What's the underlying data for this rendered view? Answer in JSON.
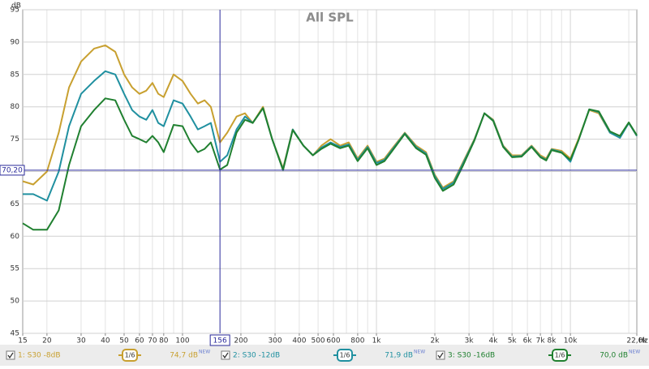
{
  "chart_data": {
    "type": "line",
    "title": "All SPL",
    "y_label": "dB",
    "x_label": "Hz",
    "x": [
      15,
      17,
      20,
      23,
      26,
      30,
      35,
      40,
      45,
      50,
      55,
      60,
      65,
      70,
      75,
      80,
      90,
      100,
      110,
      120,
      130,
      140,
      156,
      170,
      190,
      210,
      230,
      260,
      290,
      330,
      370,
      420,
      470,
      520,
      580,
      650,
      720,
      800,
      900,
      1000,
      1100,
      1200,
      1400,
      1600,
      1800,
      2000,
      2200,
      2500,
      2800,
      3200,
      3600,
      4000,
      4500,
      5000,
      5600,
      6300,
      7000,
      7500,
      8000,
      9000,
      10000,
      11000,
      12500,
      14000,
      16000,
      18000,
      20000,
      22000
    ],
    "series": [
      {
        "name": "1: S30 -8dB",
        "color": "#c8a030",
        "smoothing": "1/6",
        "readout": "74,7 dB",
        "readout_tag": "NEW",
        "values": [
          68.5,
          68,
          70,
          76,
          83,
          87,
          89,
          89.5,
          88.5,
          85,
          83,
          82,
          82.5,
          83.7,
          82,
          81.5,
          85,
          84,
          82,
          80.5,
          81,
          80,
          74.5,
          76,
          78.5,
          79,
          77.5,
          80,
          75,
          70.5,
          76.5,
          74,
          72.5,
          74,
          75,
          74,
          74.5,
          72,
          74,
          71.5,
          72,
          73.5,
          76,
          74,
          73,
          69.5,
          67.5,
          68.5,
          71.5,
          75,
          79,
          78,
          74,
          72.5,
          72.5,
          74,
          72.5,
          72,
          73.5,
          73.2,
          72,
          75,
          79.5,
          79,
          76,
          75.5,
          77.5,
          75.5
        ]
      },
      {
        "name": "2: S30 -12dB",
        "color": "#2090a0",
        "smoothing": "1/6",
        "readout": "71,9 dB",
        "readout_tag": "NEW",
        "values": [
          66.5,
          66.5,
          65.5,
          70,
          77,
          82,
          84,
          85.5,
          85,
          82,
          79.5,
          78.5,
          78,
          79.5,
          77.5,
          77,
          81,
          80.5,
          78.5,
          76.5,
          77,
          77.5,
          71.5,
          72.5,
          76.5,
          78.5,
          77.5,
          79.8,
          75,
          70.3,
          76.5,
          74,
          72.5,
          73.7,
          74.5,
          73.8,
          74.2,
          71.8,
          73.8,
          71.3,
          71.8,
          73.3,
          75.9,
          73.8,
          72.8,
          69.3,
          67.3,
          68.3,
          71.3,
          74.9,
          79,
          77.9,
          73.9,
          72.3,
          72.4,
          73.9,
          72.3,
          71.8,
          73.4,
          73,
          71.5,
          74.8,
          79.6,
          79.2,
          76,
          75.2,
          77.5,
          75.5
        ]
      },
      {
        "name": "3: S30 -16dB",
        "color": "#208030",
        "smoothing": "1/6",
        "readout": "70,0 dB",
        "readout_tag": "NEW",
        "values": [
          62,
          61,
          61,
          64,
          71,
          77,
          79.5,
          81.3,
          81,
          78,
          75.5,
          75,
          74.5,
          75.5,
          74.5,
          73,
          77.2,
          77,
          74.5,
          73,
          73.5,
          74.5,
          70.3,
          71,
          76,
          78,
          77.5,
          79.8,
          75,
          70.2,
          76.4,
          74,
          72.5,
          73.5,
          74.3,
          73.6,
          74,
          71.6,
          73.6,
          71,
          71.6,
          73.1,
          75.8,
          73.6,
          72.6,
          69,
          67,
          68,
          71,
          74.8,
          79,
          77.8,
          73.8,
          72.2,
          72.3,
          73.8,
          72.2,
          71.7,
          73.3,
          72.9,
          71.8,
          74.8,
          79.6,
          79.3,
          76.2,
          75.5,
          77.6,
          75.6
        ]
      }
    ],
    "xlim": [
      15,
      22000
    ],
    "log_x": true,
    "xticks": [
      15,
      20,
      30,
      40,
      50,
      60,
      70,
      80,
      100,
      200,
      300,
      400,
      500,
      600,
      800,
      {
        "value": 1000,
        "label": "1k"
      },
      {
        "value": 2000,
        "label": "2k"
      },
      {
        "value": 3000,
        "label": "3k"
      },
      {
        "value": 4000,
        "label": "4k"
      },
      {
        "value": 5000,
        "label": "5k"
      },
      {
        "value": 6000,
        "label": "6k"
      },
      {
        "value": 7000,
        "label": "7k"
      },
      {
        "value": 8000,
        "label": "8k"
      },
      {
        "value": 10000,
        "label": "10k"
      },
      {
        "value": 22000,
        "label": "22,0k"
      }
    ],
    "ylim": [
      45,
      95
    ],
    "yticks": [
      45,
      50,
      55,
      60,
      65,
      70,
      75,
      80,
      85,
      90,
      95
    ],
    "grid": true,
    "cursor": {
      "x": 156,
      "x_label": "156",
      "y": 70.2,
      "y_label": "70,20",
      "color": "#2a2a9a"
    }
  }
}
